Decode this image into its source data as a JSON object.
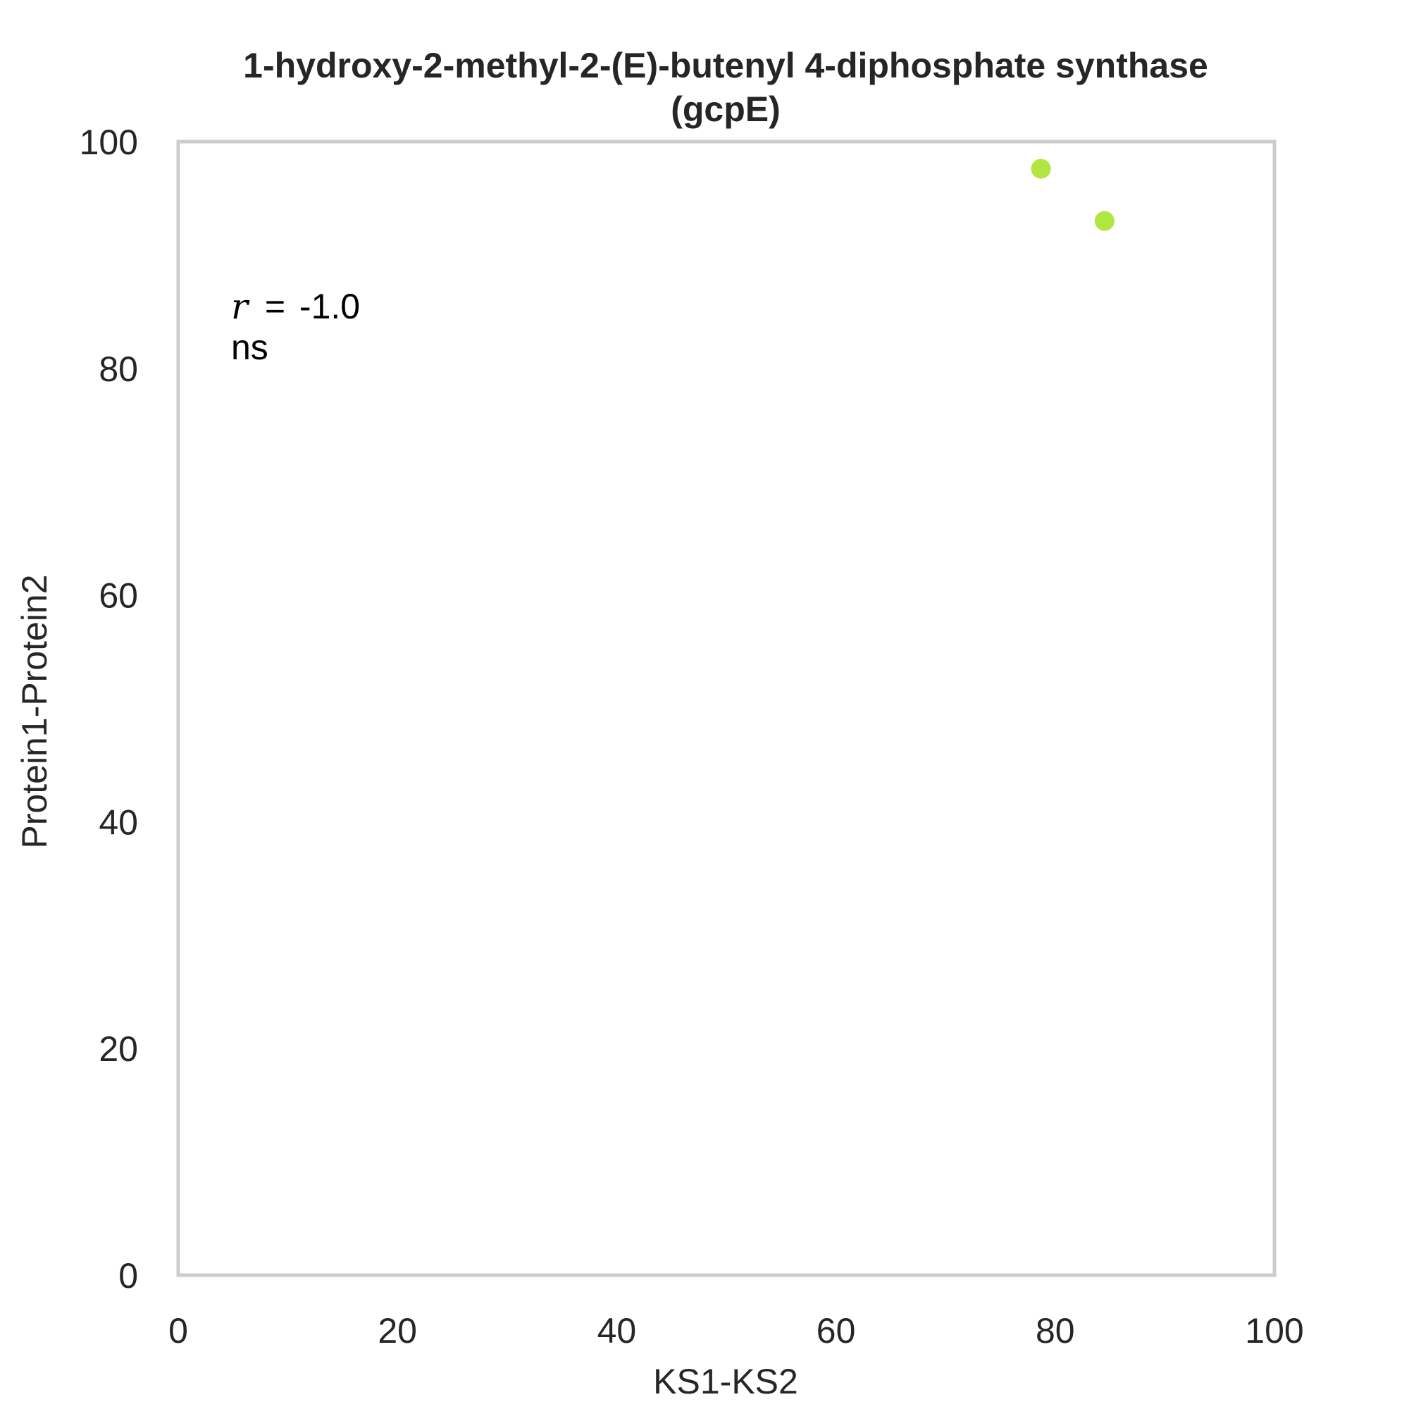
{
  "chart_data": {
    "type": "scatter",
    "title_lines": [
      "1-hydroxy-2-methyl-2-(E)-butenyl 4-diphosphate synthase",
      "(gcpE)"
    ],
    "xlabel": "KS1-KS2",
    "ylabel": "Protein1-Protein2",
    "xlim": [
      0,
      100
    ],
    "ylim": [
      0,
      100
    ],
    "xticks": [
      0,
      20,
      40,
      60,
      80,
      100
    ],
    "yticks": [
      0,
      20,
      40,
      60,
      80,
      100
    ],
    "grid": false,
    "series": [
      {
        "color": "#a8e22a",
        "points": [
          {
            "x": 78.7,
            "y": 97.6
          },
          {
            "x": 84.5,
            "y": 93.0
          }
        ]
      }
    ],
    "annotation": {
      "r_symbol": "r",
      "eq_symbol": "=",
      "r_value": "-1.0",
      "significance": "ns"
    },
    "frame_color": "#cccccc",
    "text_color": "#262626"
  }
}
